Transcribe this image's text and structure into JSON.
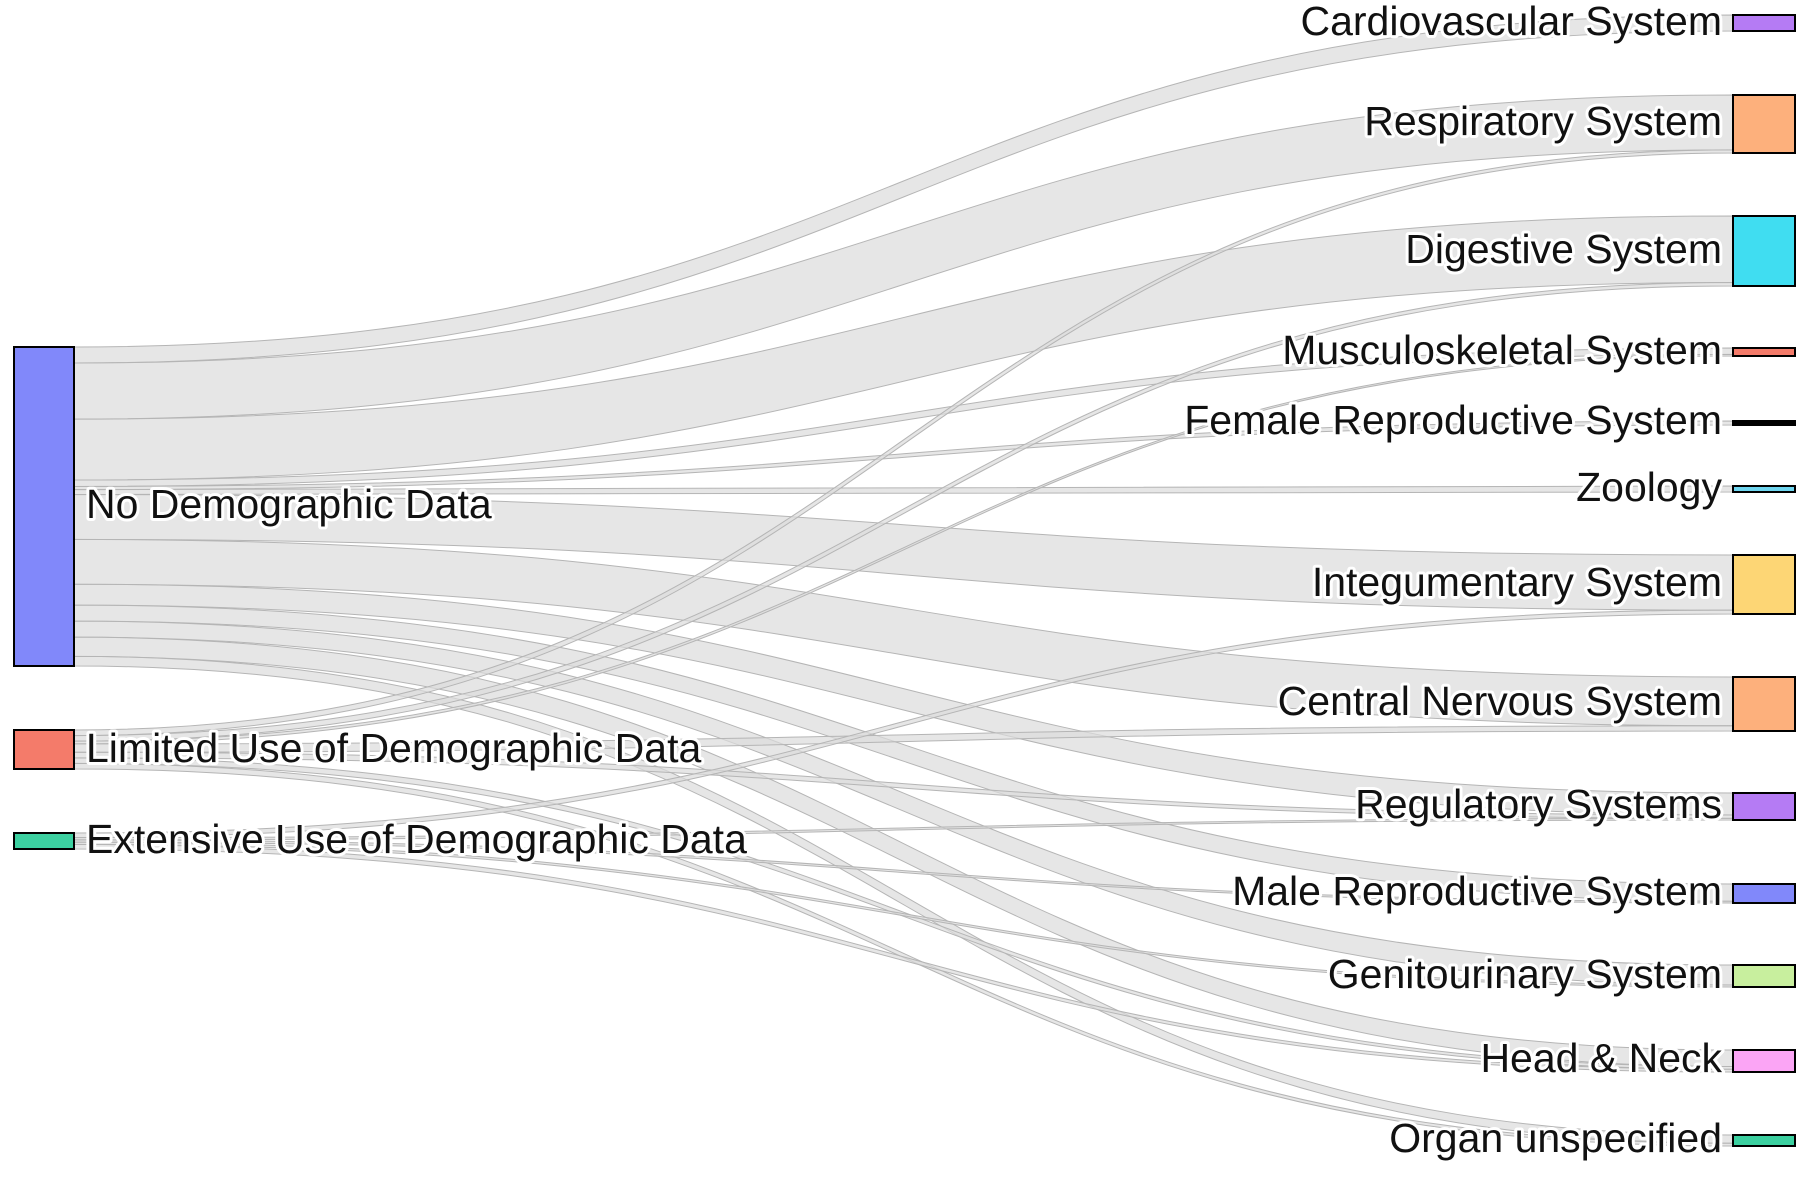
{
  "chart_data": {
    "type": "sankey",
    "sources": [
      {
        "id": "nodemo",
        "label": "No Demographic Data",
        "color": "#8188FA"
      },
      {
        "id": "limited",
        "label": "Limited Use of Demographic Data",
        "color": "#F47B6A"
      },
      {
        "id": "extensive",
        "label": "Extensive Use of Demographic Data",
        "color": "#3CD0A0"
      }
    ],
    "targets": [
      {
        "id": "cardio",
        "label": "Cardiovascular System",
        "color": "#B57BF4"
      },
      {
        "id": "resp",
        "label": "Respiratory System",
        "color": "#FDB07C"
      },
      {
        "id": "digest",
        "label": "Digestive System",
        "color": "#40DDF1"
      },
      {
        "id": "musculo",
        "label": "Musculoskeletal System",
        "color": "#F47B6A"
      },
      {
        "id": "female",
        "label": "Female Reproductive System",
        "color": "#000000"
      },
      {
        "id": "zoology",
        "label": "Zoology",
        "color": "#6FD6F0"
      },
      {
        "id": "integ",
        "label": "Integumentary System",
        "color": "#FDD675"
      },
      {
        "id": "cns",
        "label": "Central Nervous System",
        "color": "#FDB07C"
      },
      {
        "id": "regul",
        "label": "Regulatory Systems",
        "color": "#B57BF4"
      },
      {
        "id": "male",
        "label": "Male Reproductive System",
        "color": "#8188FA"
      },
      {
        "id": "genito",
        "label": "Genitourinary System",
        "color": "#C8EF9E"
      },
      {
        "id": "headneck",
        "label": "Head & Neck",
        "color": "#FBA5F5"
      },
      {
        "id": "organ",
        "label": "Organ unspecified",
        "color": "#3CD0A0"
      }
    ],
    "links": [
      {
        "source": "nodemo",
        "target": "cardio",
        "value": 10
      },
      {
        "source": "nodemo",
        "target": "resp",
        "value": 35
      },
      {
        "source": "nodemo",
        "target": "digest",
        "value": 38
      },
      {
        "source": "nodemo",
        "target": "musculo",
        "value": 4
      },
      {
        "source": "nodemo",
        "target": "female",
        "value": 2
      },
      {
        "source": "nodemo",
        "target": "zoology",
        "value": 3
      },
      {
        "source": "nodemo",
        "target": "integ",
        "value": 28
      },
      {
        "source": "nodemo",
        "target": "cns",
        "value": 28
      },
      {
        "source": "nodemo",
        "target": "regul",
        "value": 13
      },
      {
        "source": "nodemo",
        "target": "male",
        "value": 10
      },
      {
        "source": "nodemo",
        "target": "genito",
        "value": 10
      },
      {
        "source": "nodemo",
        "target": "headneck",
        "value": 12
      },
      {
        "source": "nodemo",
        "target": "organ",
        "value": 6
      },
      {
        "source": "limited",
        "target": "resp",
        "value": 2
      },
      {
        "source": "limited",
        "target": "digest",
        "value": 2
      },
      {
        "source": "limited",
        "target": "musculo",
        "value": 1
      },
      {
        "source": "limited",
        "target": "cns",
        "value": 3
      },
      {
        "source": "limited",
        "target": "regul",
        "value": 2
      },
      {
        "source": "limited",
        "target": "headneck",
        "value": 2
      },
      {
        "source": "limited",
        "target": "organ",
        "value": 2
      },
      {
        "source": "extensive",
        "target": "integ",
        "value": 2
      },
      {
        "source": "extensive",
        "target": "regul",
        "value": 1
      },
      {
        "source": "extensive",
        "target": "male",
        "value": 1
      },
      {
        "source": "extensive",
        "target": "genito",
        "value": 1
      },
      {
        "source": "extensive",
        "target": "headneck",
        "value": 2
      }
    ]
  }
}
